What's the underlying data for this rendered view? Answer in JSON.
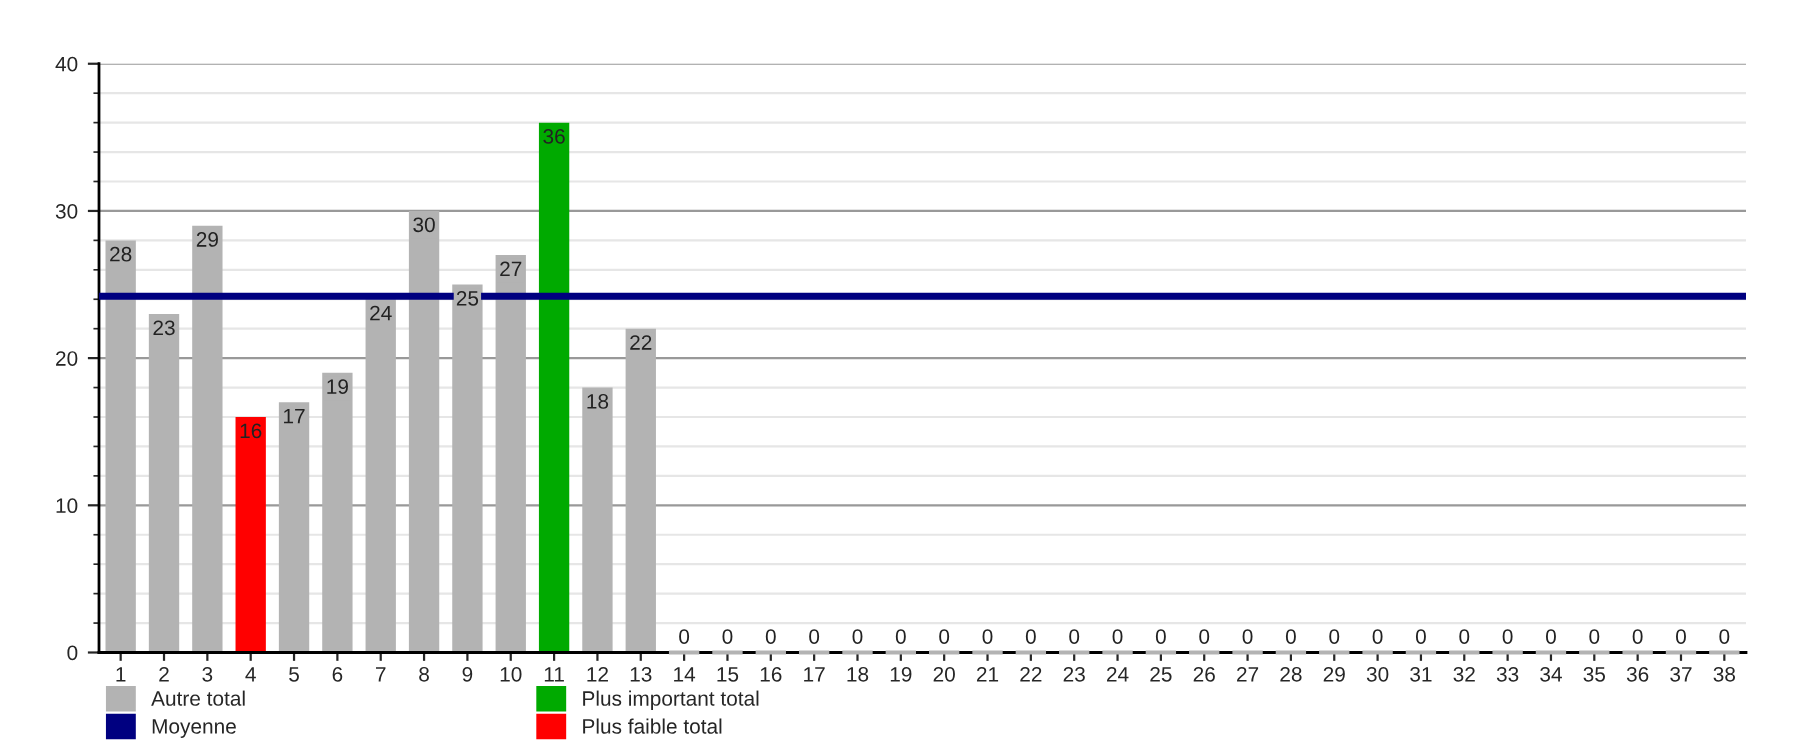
{
  "chart_data": {
    "type": "bar",
    "categories": [
      "1",
      "2",
      "3",
      "4",
      "5",
      "6",
      "7",
      "8",
      "9",
      "10",
      "11",
      "12",
      "13",
      "14",
      "15",
      "16",
      "17",
      "18",
      "19",
      "20",
      "21",
      "22",
      "23",
      "24",
      "25",
      "26",
      "27",
      "28",
      "29",
      "30",
      "31",
      "32",
      "33",
      "34",
      "35",
      "36",
      "37",
      "38"
    ],
    "series": [
      {
        "name": "Autre total",
        "color": "#b3b3b3",
        "values": [
          28,
          23,
          29,
          null,
          17,
          19,
          24,
          30,
          25,
          27,
          null,
          18,
          22,
          0,
          0,
          0,
          0,
          0,
          0,
          0,
          0,
          0,
          0,
          0,
          0,
          0,
          0,
          0,
          0,
          0,
          0,
          0,
          0,
          0,
          0,
          0,
          0,
          0
        ]
      },
      {
        "name": "Plus important total",
        "color": "#00aa00",
        "values": [
          null,
          null,
          null,
          null,
          null,
          null,
          null,
          null,
          null,
          null,
          36,
          null,
          null,
          null,
          null,
          null,
          null,
          null,
          null,
          null,
          null,
          null,
          null,
          null,
          null,
          null,
          null,
          null,
          null,
          null,
          null,
          null,
          null,
          null,
          null,
          null,
          null,
          null
        ]
      },
      {
        "name": "Plus faible total",
        "color": "#ff0000",
        "values": [
          null,
          null,
          null,
          16,
          null,
          null,
          null,
          null,
          null,
          null,
          null,
          null,
          null,
          null,
          null,
          null,
          null,
          null,
          null,
          null,
          null,
          null,
          null,
          null,
          null,
          null,
          null,
          null,
          null,
          null,
          null,
          null,
          null,
          null,
          null,
          null,
          null,
          null
        ]
      }
    ],
    "ref_lines": [
      {
        "axis": "y",
        "value": 24.2,
        "label": "Moyenne",
        "color": "#000080",
        "line_style": "solid"
      }
    ],
    "ylim": [
      0,
      40
    ],
    "yticks": [
      0,
      10,
      20,
      30,
      40
    ],
    "grid": "y",
    "legend": "bottom",
    "data_labels": true
  }
}
